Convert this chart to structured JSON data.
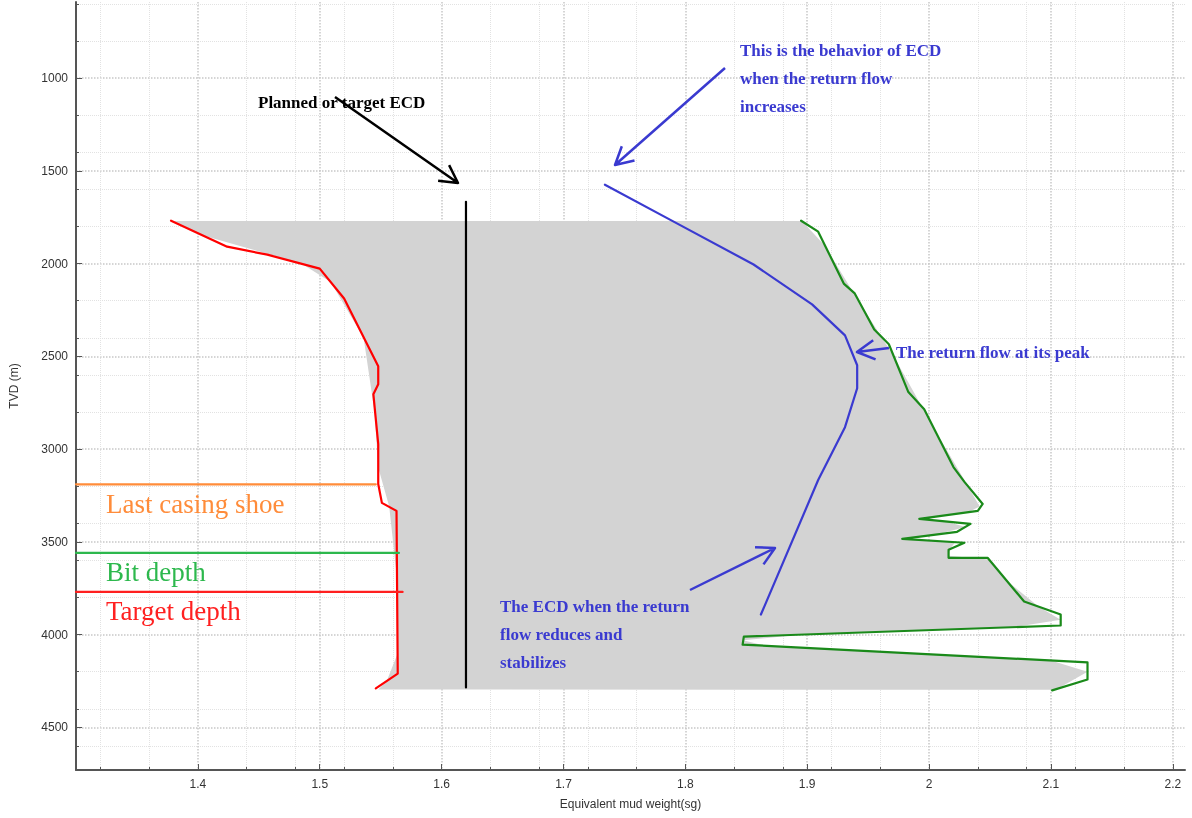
{
  "chart_data": {
    "type": "line",
    "xlabel": "Equivalent mud weight(sg)",
    "ylabel": "TVD (m)",
    "xlim": [
      1.3,
      2.21
    ],
    "ylim": [
      4730,
      590
    ],
    "xticks": [
      1.4,
      1.5,
      1.6,
      1.7,
      1.8,
      1.9,
      2,
      2.1,
      2.2
    ],
    "yticks": [
      1000,
      1500,
      2000,
      2500,
      3000,
      3500,
      4000,
      4500
    ],
    "grid": true,
    "marker": "none",
    "line_style": "solid",
    "series": [
      {
        "color": "#ff0000",
        "x": [
          1.378,
          1.424,
          1.457,
          1.5,
          1.52,
          1.548,
          1.548,
          1.544,
          1.548,
          1.548,
          1.551,
          1.563,
          1.564,
          1.546
        ],
        "values": [
          1769,
          1909,
          1952,
          2027,
          2188,
          2554,
          2650,
          2704,
          2973,
          3188,
          3290,
          3333,
          4210,
          4290
        ]
      },
      {
        "color": "#1a8a1a",
        "x": [
          1.895,
          1.909,
          1.93,
          1.939,
          1.955,
          1.967,
          1.983,
          1.996,
          2.02,
          2.029,
          2.044,
          2.04,
          1.992,
          2.034,
          2.023,
          1.978,
          2.029,
          2.016,
          2.016,
          2.048,
          2.078,
          2.108,
          2.108,
          1.848,
          1.847,
          2.13,
          2.13,
          2.101
        ],
        "values": [
          1769,
          1828,
          2108,
          2161,
          2355,
          2435,
          2693,
          2785,
          3097,
          3177,
          3296,
          3333,
          3376,
          3403,
          3446,
          3484,
          3505,
          3543,
          3586,
          3586,
          3822,
          3892,
          3951,
          4011,
          4054,
          4150,
          4242,
          4301
        ]
      },
      {
        "color": "#3a3ad0",
        "x": [
          1.734,
          1.795,
          1.856,
          1.904,
          1.931,
          1.941,
          1.941,
          1.931,
          1.909,
          1.862
        ],
        "values": [
          1575,
          1790,
          2005,
          2220,
          2387,
          2548,
          2672,
          2882,
          3167,
          3892
        ]
      },
      {
        "color": "#000000",
        "x": [
          1.62,
          1.62
        ],
        "values": [
          1667,
          4285
        ]
      },
      {
        "name": "Last casing shoe",
        "color": "#ff8c3a",
        "x": [
          1.3,
          1.546
        ],
        "values": [
          3190,
          3190
        ]
      },
      {
        "name": "Bit depth",
        "color": "#2db84d",
        "x": [
          1.3,
          1.565
        ],
        "values": [
          3560,
          3560
        ]
      },
      {
        "name": "Target depth",
        "color": "#ff2020",
        "x": [
          1.3,
          1.568
        ],
        "values": [
          3770,
          3770
        ]
      },
      {
        "type": "area",
        "color": "#d3d3d3",
        "x": [
          1.38,
          1.405,
          1.485,
          1.509,
          1.536,
          1.545,
          1.548,
          1.557,
          1.5635,
          1.564,
          1.555,
          1.548,
          2.104,
          2.13,
          2.1,
          1.865,
          1.8475,
          1.896,
          2.069,
          2.108,
          2.09,
          2.062,
          2.049,
          2.016,
          2.017,
          2.0217,
          1.98,
          2.006,
          2.03,
          2.014,
          1.994,
          2.032,
          2.0415,
          2.032,
          2.005,
          1.971,
          1.942,
          1.914,
          1.897,
          1.895
        ],
        "values": [
          1770,
          1850,
          2000,
          2100,
          2400,
          2800,
          3100,
          3310,
          3700,
          4100,
          4250,
          4296,
          4298,
          4200,
          4140,
          4060,
          4030,
          4000,
          3960,
          3920,
          3850,
          3700,
          3595,
          3575,
          3540,
          3500,
          3485,
          3460,
          3420,
          3390,
          3377,
          3340,
          3310,
          3200,
          2900,
          2500,
          2200,
          1900,
          1780,
          1770
        ]
      }
    ],
    "annotations": [
      "Planned or target ECD",
      "This is the behavior of ECD\nwhen the return flow\nincreases",
      {
        "text": "The return flow at its peak",
        "x": 1.94,
        "y": 2520
      },
      "The ECD when the return\nflow reduces and\nstabilizes"
    ]
  }
}
